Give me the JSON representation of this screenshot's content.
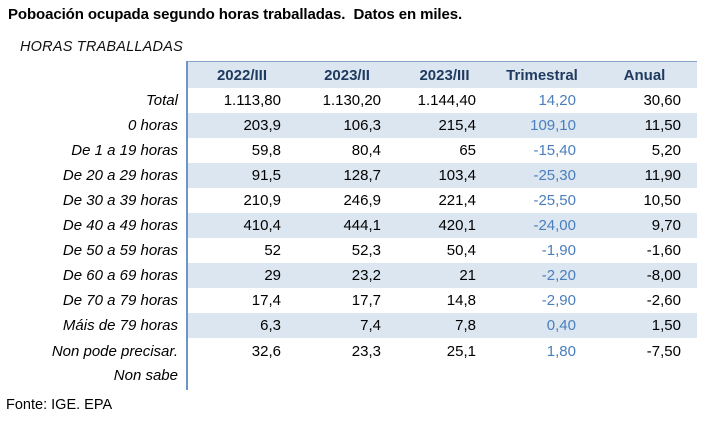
{
  "title": "Poboación ocupada segundo horas traballadas.  Datos en miles.",
  "subtitle": "HORAS TRABALLADAS",
  "source": "Fonte: IGE. EPA",
  "colors": {
    "header_bg": "#dce6f1",
    "stripe_bg": "#dce6f1",
    "header_text": "#1f3a5f",
    "accent_text": "#4a7ebc",
    "border_line": "#6d96c6"
  },
  "table": {
    "columns": [
      "2022/III",
      "2023/II",
      "2023/III",
      "Trimestral",
      "Anual"
    ],
    "rows": [
      {
        "label": "Total",
        "values": [
          "1.113,80",
          "1.130,20",
          "1.144,40",
          "14,20",
          "30,60"
        ]
      },
      {
        "label": "0 horas",
        "values": [
          "203,9",
          "106,3",
          "215,4",
          "109,10",
          "11,50"
        ]
      },
      {
        "label": "De 1 a 19 horas",
        "values": [
          "59,8",
          "80,4",
          "65",
          "-15,40",
          "5,20"
        ]
      },
      {
        "label": "De 20 a 29 horas",
        "values": [
          "91,5",
          "128,7",
          "103,4",
          "-25,30",
          "11,90"
        ]
      },
      {
        "label": "De 30 a 39 horas",
        "values": [
          "210,9",
          "246,9",
          "221,4",
          "-25,50",
          "10,50"
        ]
      },
      {
        "label": "De 40 a 49 horas",
        "values": [
          "410,4",
          "444,1",
          "420,1",
          "-24,00",
          "9,70"
        ]
      },
      {
        "label": "De 50 a 59 horas",
        "values": [
          "52",
          "52,3",
          "50,4",
          "-1,90",
          "-1,60"
        ]
      },
      {
        "label": "De 60 a 69 horas",
        "values": [
          "29",
          "23,2",
          "21",
          "-2,20",
          "-8,00"
        ]
      },
      {
        "label": "De 70 a 79 horas",
        "values": [
          "17,4",
          "17,7",
          "14,8",
          "-2,90",
          "-2,60"
        ]
      },
      {
        "label": "Máis de 79 horas",
        "values": [
          "6,3",
          "7,4",
          "7,8",
          "0,40",
          "1,50"
        ]
      },
      {
        "label": "Non pode precisar.\nNon sabe",
        "values": [
          "32,6",
          "23,3",
          "25,1",
          "1,80",
          "-7,50"
        ]
      }
    ]
  }
}
